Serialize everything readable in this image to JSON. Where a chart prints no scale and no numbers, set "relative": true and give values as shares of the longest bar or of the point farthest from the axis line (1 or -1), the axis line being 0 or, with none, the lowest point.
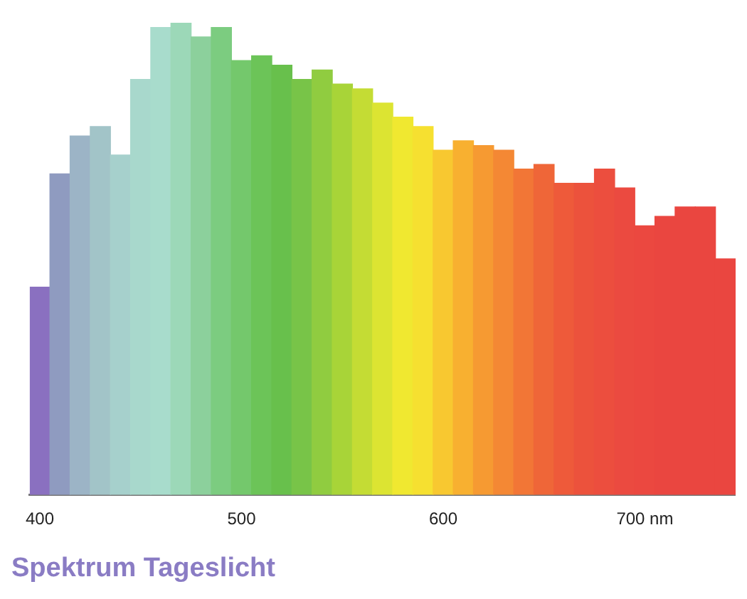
{
  "chart_data": {
    "type": "bar",
    "title": "Spektrum Tageslicht",
    "relative": true,
    "x": [
      400,
      410,
      420,
      430,
      440,
      450,
      460,
      470,
      480,
      490,
      500,
      510,
      520,
      530,
      540,
      550,
      560,
      570,
      580,
      590,
      600,
      610,
      620,
      630,
      640,
      650,
      660,
      670,
      680,
      690,
      700,
      710,
      720,
      730,
      740
    ],
    "values": [
      0.44,
      0.68,
      0.76,
      0.78,
      0.72,
      0.88,
      0.99,
      1,
      0.97,
      0.99,
      0.92,
      0.93,
      0.91,
      0.88,
      0.9,
      0.87,
      0.86,
      0.83,
      0.8,
      0.78,
      0.73,
      0.75,
      0.74,
      0.73,
      0.69,
      0.7,
      0.66,
      0.66,
      0.69,
      0.65,
      0.57,
      0.59,
      0.61,
      0.61,
      0.5
    ],
    "colors": [
      "#8a70c0",
      "#8f9bc0",
      "#9cb4c6",
      "#a2c4c8",
      "#a6d0cc",
      "#a8d8cc",
      "#a8dccc",
      "#9cd8b8",
      "#8cd09c",
      "#7ccc80",
      "#74c86c",
      "#6cc458",
      "#68c04c",
      "#78c448",
      "#90cc40",
      "#a8d438",
      "#c4dc34",
      "#dce432",
      "#f0e830",
      "#f6e030",
      "#f8c830",
      "#f8b030",
      "#f69a32",
      "#f48834",
      "#f27636",
      "#ef6638",
      "#ee5a3a",
      "#ec523c",
      "#ec4e3e",
      "#eb4a40",
      "#eb4840",
      "#ea4640",
      "#ea4640",
      "#ea4640",
      "#ea4640"
    ],
    "xlim": [
      395,
      745
    ],
    "xticks": [
      400,
      500,
      600,
      {
        "value": 700,
        "label": "700 nm"
      }
    ],
    "grid": false,
    "legend": false
  }
}
